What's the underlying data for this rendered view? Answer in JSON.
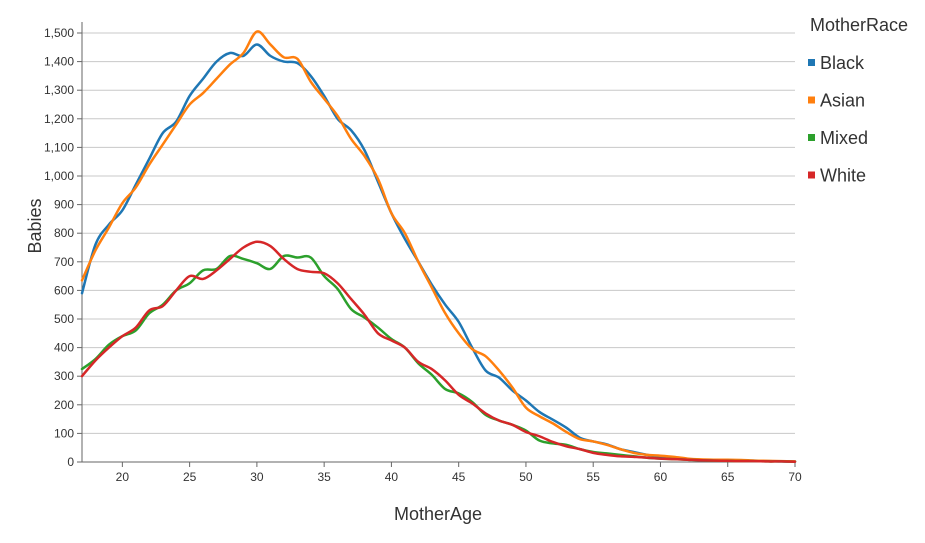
{
  "chart_data": {
    "type": "line",
    "xlabel": "MotherAge",
    "ylabel": "Babies",
    "xlim": [
      17,
      70
    ],
    "ylim": [
      0,
      1500
    ],
    "x_ticks": [
      20,
      25,
      30,
      35,
      40,
      45,
      50,
      55,
      60,
      65,
      70
    ],
    "y_ticks": [
      0,
      100,
      200,
      300,
      400,
      500,
      600,
      700,
      800,
      900,
      1000,
      1100,
      1200,
      1300,
      1400,
      1500
    ],
    "x_tick_labels": [
      "20",
      "25",
      "30",
      "35",
      "40",
      "45",
      "50",
      "55",
      "60",
      "65",
      "70"
    ],
    "y_tick_labels": [
      "0",
      "100",
      "200",
      "300",
      "400",
      "500",
      "600",
      "700",
      "800",
      "900",
      "1,000",
      "1,100",
      "1,200",
      "1,300",
      "1,400",
      "1,500"
    ],
    "grid": "horizontal",
    "legend_title": "MotherRace",
    "legend_position": "top-right",
    "series": [
      {
        "name": "Black",
        "color": "#1f77b4",
        "points": [
          [
            17,
            590
          ],
          [
            18,
            760
          ],
          [
            19,
            830
          ],
          [
            20,
            880
          ],
          [
            21,
            970
          ],
          [
            22,
            1060
          ],
          [
            23,
            1150
          ],
          [
            24,
            1190
          ],
          [
            25,
            1280
          ],
          [
            26,
            1340
          ],
          [
            27,
            1400
          ],
          [
            28,
            1430
          ],
          [
            29,
            1420
          ],
          [
            30,
            1460
          ],
          [
            31,
            1420
          ],
          [
            32,
            1400
          ],
          [
            33,
            1395
          ],
          [
            34,
            1350
          ],
          [
            35,
            1280
          ],
          [
            36,
            1200
          ],
          [
            37,
            1160
          ],
          [
            38,
            1090
          ],
          [
            39,
            980
          ],
          [
            40,
            870
          ],
          [
            41,
            780
          ],
          [
            42,
            700
          ],
          [
            43,
            620
          ],
          [
            44,
            550
          ],
          [
            45,
            490
          ],
          [
            46,
            400
          ],
          [
            47,
            320
          ],
          [
            48,
            295
          ],
          [
            49,
            250
          ],
          [
            50,
            215
          ],
          [
            51,
            175
          ],
          [
            52,
            148
          ],
          [
            53,
            120
          ],
          [
            54,
            85
          ],
          [
            55,
            72
          ],
          [
            56,
            62
          ],
          [
            57,
            45
          ],
          [
            58,
            35
          ],
          [
            59,
            25
          ],
          [
            60,
            18
          ],
          [
            61,
            15
          ],
          [
            62,
            10
          ],
          [
            63,
            8
          ],
          [
            64,
            6
          ],
          [
            65,
            5
          ],
          [
            66,
            4
          ],
          [
            67,
            3
          ],
          [
            68,
            3
          ],
          [
            69,
            2
          ],
          [
            70,
            2
          ]
        ]
      },
      {
        "name": "Asian",
        "color": "#ff7f0e",
        "points": [
          [
            17,
            635
          ],
          [
            18,
            740
          ],
          [
            19,
            820
          ],
          [
            20,
            905
          ],
          [
            21,
            960
          ],
          [
            22,
            1040
          ],
          [
            23,
            1110
          ],
          [
            24,
            1180
          ],
          [
            25,
            1250
          ],
          [
            26,
            1290
          ],
          [
            27,
            1340
          ],
          [
            28,
            1390
          ],
          [
            29,
            1430
          ],
          [
            30,
            1505
          ],
          [
            31,
            1460
          ],
          [
            32,
            1415
          ],
          [
            33,
            1410
          ],
          [
            34,
            1330
          ],
          [
            35,
            1270
          ],
          [
            36,
            1210
          ],
          [
            37,
            1130
          ],
          [
            38,
            1070
          ],
          [
            39,
            990
          ],
          [
            40,
            870
          ],
          [
            41,
            800
          ],
          [
            42,
            700
          ],
          [
            43,
            610
          ],
          [
            44,
            520
          ],
          [
            45,
            450
          ],
          [
            46,
            395
          ],
          [
            47,
            370
          ],
          [
            48,
            320
          ],
          [
            49,
            260
          ],
          [
            50,
            190
          ],
          [
            51,
            160
          ],
          [
            52,
            135
          ],
          [
            53,
            105
          ],
          [
            54,
            80
          ],
          [
            55,
            72
          ],
          [
            56,
            60
          ],
          [
            57,
            45
          ],
          [
            58,
            32
          ],
          [
            59,
            25
          ],
          [
            60,
            22
          ],
          [
            61,
            18
          ],
          [
            62,
            12
          ],
          [
            63,
            9
          ],
          [
            64,
            8
          ],
          [
            65,
            8
          ],
          [
            66,
            7
          ],
          [
            67,
            5
          ],
          [
            68,
            4
          ],
          [
            69,
            3
          ],
          [
            70,
            2
          ]
        ]
      },
      {
        "name": "Mixed",
        "color": "#2ca02c",
        "points": [
          [
            17,
            325
          ],
          [
            18,
            360
          ],
          [
            19,
            410
          ],
          [
            20,
            440
          ],
          [
            21,
            460
          ],
          [
            22,
            520
          ],
          [
            23,
            550
          ],
          [
            24,
            600
          ],
          [
            25,
            625
          ],
          [
            26,
            670
          ],
          [
            27,
            675
          ],
          [
            28,
            720
          ],
          [
            29,
            710
          ],
          [
            30,
            695
          ],
          [
            31,
            675
          ],
          [
            32,
            720
          ],
          [
            33,
            715
          ],
          [
            34,
            715
          ],
          [
            35,
            650
          ],
          [
            36,
            605
          ],
          [
            37,
            535
          ],
          [
            38,
            505
          ],
          [
            39,
            470
          ],
          [
            40,
            430
          ],
          [
            41,
            400
          ],
          [
            42,
            345
          ],
          [
            43,
            305
          ],
          [
            44,
            255
          ],
          [
            45,
            240
          ],
          [
            46,
            210
          ],
          [
            47,
            165
          ],
          [
            48,
            145
          ],
          [
            49,
            130
          ],
          [
            50,
            110
          ],
          [
            51,
            75
          ],
          [
            52,
            65
          ],
          [
            53,
            60
          ],
          [
            54,
            45
          ],
          [
            55,
            35
          ],
          [
            56,
            30
          ],
          [
            57,
            25
          ],
          [
            58,
            20
          ],
          [
            59,
            15
          ],
          [
            60,
            12
          ],
          [
            61,
            10
          ],
          [
            62,
            8
          ],
          [
            63,
            6
          ],
          [
            64,
            5
          ],
          [
            65,
            4
          ],
          [
            66,
            3
          ],
          [
            67,
            3
          ],
          [
            68,
            2
          ],
          [
            69,
            2
          ],
          [
            70,
            1
          ]
        ]
      },
      {
        "name": "White",
        "color": "#d62728",
        "points": [
          [
            17,
            300
          ],
          [
            18,
            355
          ],
          [
            19,
            400
          ],
          [
            20,
            440
          ],
          [
            21,
            470
          ],
          [
            22,
            530
          ],
          [
            23,
            545
          ],
          [
            24,
            600
          ],
          [
            25,
            650
          ],
          [
            26,
            640
          ],
          [
            27,
            670
          ],
          [
            28,
            710
          ],
          [
            29,
            750
          ],
          [
            30,
            770
          ],
          [
            31,
            755
          ],
          [
            32,
            710
          ],
          [
            33,
            675
          ],
          [
            34,
            665
          ],
          [
            35,
            660
          ],
          [
            36,
            625
          ],
          [
            37,
            570
          ],
          [
            38,
            515
          ],
          [
            39,
            450
          ],
          [
            40,
            425
          ],
          [
            41,
            400
          ],
          [
            42,
            350
          ],
          [
            43,
            325
          ],
          [
            44,
            285
          ],
          [
            45,
            235
          ],
          [
            46,
            205
          ],
          [
            47,
            170
          ],
          [
            48,
            145
          ],
          [
            49,
            130
          ],
          [
            50,
            105
          ],
          [
            51,
            90
          ],
          [
            52,
            70
          ],
          [
            53,
            55
          ],
          [
            54,
            45
          ],
          [
            55,
            32
          ],
          [
            56,
            25
          ],
          [
            57,
            20
          ],
          [
            58,
            18
          ],
          [
            59,
            15
          ],
          [
            60,
            12
          ],
          [
            61,
            10
          ],
          [
            62,
            8
          ],
          [
            63,
            6
          ],
          [
            64,
            5
          ],
          [
            65,
            4
          ],
          [
            66,
            3
          ],
          [
            67,
            3
          ],
          [
            68,
            2
          ],
          [
            69,
            2
          ],
          [
            70,
            1
          ]
        ]
      }
    ]
  }
}
